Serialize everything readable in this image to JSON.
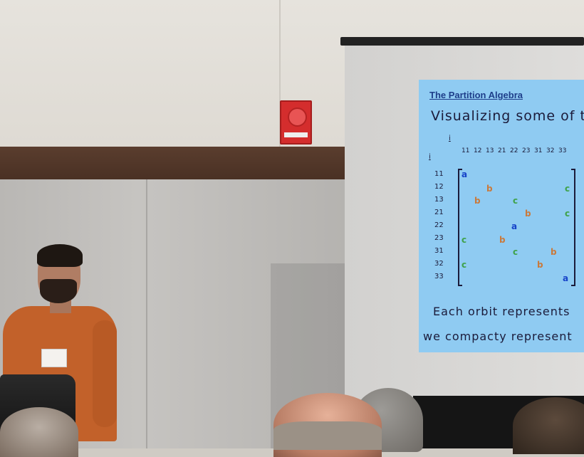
{
  "slide": {
    "title": "The Partition Algebra",
    "subtitle": "Visualizing some of t",
    "top_index": "i",
    "left_index": "i",
    "column_headers": [
      "11",
      "12",
      "13",
      "21",
      "22",
      "23",
      "31",
      "32",
      "33"
    ],
    "row_headers": [
      "11",
      "12",
      "13",
      "21",
      "22",
      "23",
      "31",
      "32",
      "33"
    ],
    "matrix_entries": [
      {
        "label": "a",
        "color": "#1744c9"
      },
      {
        "label": "b",
        "color": "#c97a3c"
      },
      {
        "label": "c",
        "color": "#3fa24a"
      },
      {
        "label": "b",
        "color": "#c97a3c"
      },
      {
        "label": "c",
        "color": "#3fa24a"
      },
      {
        "label": "b",
        "color": "#c97a3c"
      },
      {
        "label": "c",
        "color": "#3fa24a"
      },
      {
        "label": "a",
        "color": "#1744c9"
      },
      {
        "label": "c",
        "color": "#3fa24a"
      },
      {
        "label": "b",
        "color": "#c97a3c"
      },
      {
        "label": "c",
        "color": "#3fa24a"
      },
      {
        "label": "b",
        "color": "#c97a3c"
      },
      {
        "label": "c",
        "color": "#3fa24a"
      },
      {
        "label": "b",
        "color": "#c97a3c"
      },
      {
        "label": "a",
        "color": "#1744c9"
      }
    ],
    "footer_line1": "Each orbit represents",
    "footer_line2": "we compacty represent"
  }
}
